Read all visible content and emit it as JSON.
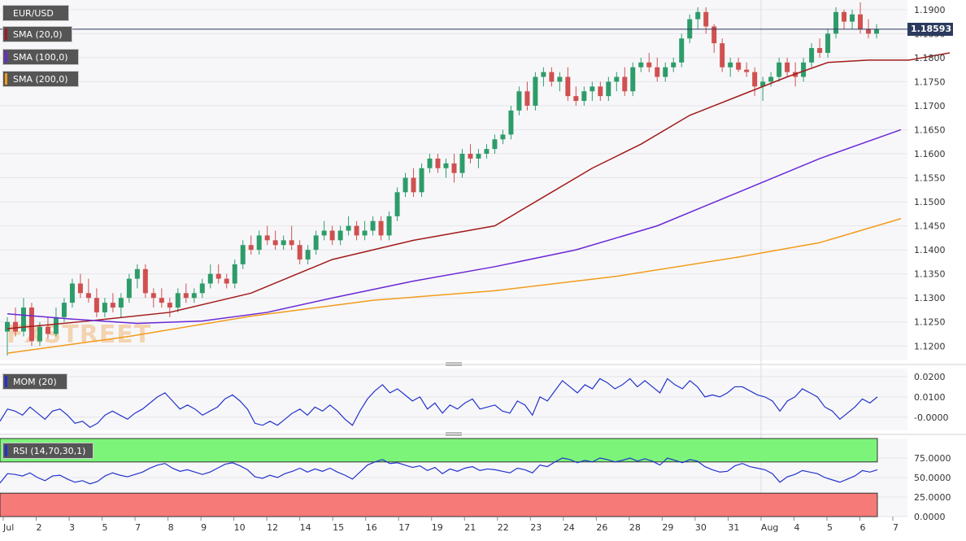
{
  "chart_data": [
    {
      "type": "candlestick",
      "symbol": "EUR/USD",
      "last_price": "1.18593",
      "ylim": [
        1.117,
        1.192
      ],
      "y_ticks": [
        "1.1900",
        "1.1850",
        "1.1800",
        "1.1750",
        "1.1700",
        "1.1650",
        "1.1600",
        "1.1550",
        "1.1500",
        "1.1450",
        "1.1400",
        "1.1350",
        "1.1300",
        "1.1250",
        "1.1200"
      ],
      "x_ticks": [
        "Jul",
        "2",
        "3",
        "5",
        "7",
        "8",
        "9",
        "10",
        "12",
        "14",
        "15",
        "16",
        "17",
        "19",
        "21",
        "22",
        "23",
        "24",
        "26",
        "28",
        "29",
        "30",
        "31",
        "Aug",
        "4",
        "5",
        "6",
        "7"
      ],
      "ohlc": [
        [
          1.123,
          1.126,
          1.118,
          1.125
        ],
        [
          1.125,
          1.128,
          1.122,
          1.123
        ],
        [
          1.123,
          1.13,
          1.122,
          1.128
        ],
        [
          1.128,
          1.129,
          1.12,
          1.121
        ],
        [
          1.121,
          1.125,
          1.12,
          1.124
        ],
        [
          1.124,
          1.126,
          1.1215,
          1.1225
        ],
        [
          1.1225,
          1.128,
          1.122,
          1.126
        ],
        [
          1.126,
          1.13,
          1.125,
          1.129
        ],
        [
          1.129,
          1.134,
          1.128,
          1.133
        ],
        [
          1.133,
          1.135,
          1.13,
          1.131
        ],
        [
          1.131,
          1.134,
          1.129,
          1.13
        ],
        [
          1.13,
          1.132,
          1.126,
          1.127
        ],
        [
          1.127,
          1.13,
          1.126,
          1.129
        ],
        [
          1.129,
          1.131,
          1.127,
          1.128
        ],
        [
          1.128,
          1.131,
          1.126,
          1.13
        ],
        [
          1.13,
          1.135,
          1.129,
          1.134
        ],
        [
          1.134,
          1.137,
          1.132,
          1.136
        ],
        [
          1.136,
          1.137,
          1.13,
          1.131
        ],
        [
          1.131,
          1.132,
          1.128,
          1.13
        ],
        [
          1.13,
          1.132,
          1.128,
          1.129
        ],
        [
          1.129,
          1.13,
          1.126,
          1.128
        ],
        [
          1.128,
          1.132,
          1.127,
          1.131
        ],
        [
          1.131,
          1.133,
          1.129,
          1.13
        ],
        [
          1.13,
          1.132,
          1.129,
          1.131
        ],
        [
          1.131,
          1.134,
          1.13,
          1.133
        ],
        [
          1.133,
          1.137,
          1.132,
          1.135
        ],
        [
          1.135,
          1.137,
          1.133,
          1.134
        ],
        [
          1.134,
          1.135,
          1.132,
          1.133
        ],
        [
          1.133,
          1.138,
          1.132,
          1.137
        ],
        [
          1.137,
          1.142,
          1.136,
          1.141
        ],
        [
          1.141,
          1.143,
          1.139,
          1.14
        ],
        [
          1.14,
          1.144,
          1.139,
          1.143
        ],
        [
          1.143,
          1.145,
          1.141,
          1.142
        ],
        [
          1.142,
          1.144,
          1.14,
          1.141
        ],
        [
          1.141,
          1.143,
          1.14,
          1.142
        ],
        [
          1.142,
          1.145,
          1.14,
          1.141
        ],
        [
          1.141,
          1.142,
          1.137,
          1.138
        ],
        [
          1.138,
          1.141,
          1.137,
          1.14
        ],
        [
          1.14,
          1.144,
          1.139,
          1.143
        ],
        [
          1.143,
          1.146,
          1.142,
          1.144
        ],
        [
          1.144,
          1.145,
          1.141,
          1.142
        ],
        [
          1.142,
          1.145,
          1.141,
          1.144
        ],
        [
          1.144,
          1.147,
          1.143,
          1.145
        ],
        [
          1.145,
          1.146,
          1.142,
          1.143
        ],
        [
          1.143,
          1.146,
          1.142,
          1.144
        ],
        [
          1.144,
          1.147,
          1.143,
          1.146
        ],
        [
          1.146,
          1.147,
          1.142,
          1.143
        ],
        [
          1.143,
          1.148,
          1.142,
          1.147
        ],
        [
          1.147,
          1.153,
          1.146,
          1.152
        ],
        [
          1.152,
          1.156,
          1.151,
          1.155
        ],
        [
          1.155,
          1.157,
          1.151,
          1.152
        ],
        [
          1.152,
          1.158,
          1.151,
          1.157
        ],
        [
          1.157,
          1.16,
          1.156,
          1.159
        ],
        [
          1.159,
          1.16,
          1.156,
          1.157
        ],
        [
          1.157,
          1.159,
          1.155,
          1.158
        ],
        [
          1.158,
          1.16,
          1.154,
          1.156
        ],
        [
          1.156,
          1.161,
          1.155,
          1.16
        ],
        [
          1.16,
          1.162,
          1.158,
          1.159
        ],
        [
          1.159,
          1.161,
          1.157,
          1.16
        ],
        [
          1.16,
          1.162,
          1.159,
          1.161
        ],
        [
          1.161,
          1.164,
          1.16,
          1.163
        ],
        [
          1.163,
          1.165,
          1.162,
          1.164
        ],
        [
          1.164,
          1.17,
          1.163,
          1.169
        ],
        [
          1.169,
          1.174,
          1.168,
          1.173
        ],
        [
          1.173,
          1.175,
          1.169,
          1.17
        ],
        [
          1.17,
          1.177,
          1.169,
          1.176
        ],
        [
          1.176,
          1.178,
          1.174,
          1.177
        ],
        [
          1.177,
          1.178,
          1.174,
          1.175
        ],
        [
          1.175,
          1.177,
          1.173,
          1.176
        ],
        [
          1.176,
          1.178,
          1.171,
          1.172
        ],
        [
          1.172,
          1.174,
          1.17,
          1.171
        ],
        [
          1.171,
          1.174,
          1.17,
          1.173
        ],
        [
          1.173,
          1.175,
          1.171,
          1.174
        ],
        [
          1.174,
          1.175,
          1.171,
          1.172
        ],
        [
          1.172,
          1.176,
          1.171,
          1.175
        ],
        [
          1.175,
          1.177,
          1.173,
          1.176
        ],
        [
          1.176,
          1.178,
          1.172,
          1.173
        ],
        [
          1.173,
          1.179,
          1.172,
          1.178
        ],
        [
          1.178,
          1.18,
          1.177,
          1.179
        ],
        [
          1.179,
          1.181,
          1.177,
          1.178
        ],
        [
          1.178,
          1.18,
          1.175,
          1.176
        ],
        [
          1.176,
          1.179,
          1.175,
          1.178
        ],
        [
          1.178,
          1.18,
          1.177,
          1.179
        ],
        [
          1.179,
          1.185,
          1.178,
          1.184
        ],
        [
          1.184,
          1.189,
          1.183,
          1.188
        ],
        [
          1.188,
          1.1905,
          1.186,
          1.1895
        ],
        [
          1.1895,
          1.1905,
          1.185,
          1.1865
        ],
        [
          1.1865,
          1.187,
          1.181,
          1.183
        ],
        [
          1.183,
          1.184,
          1.177,
          1.178
        ],
        [
          1.178,
          1.18,
          1.176,
          1.179
        ],
        [
          1.179,
          1.18,
          1.177,
          1.1775
        ],
        [
          1.1775,
          1.179,
          1.176,
          1.177
        ],
        [
          1.177,
          1.178,
          1.172,
          1.174
        ],
        [
          1.174,
          1.176,
          1.171,
          1.175
        ],
        [
          1.175,
          1.177,
          1.174,
          1.176
        ],
        [
          1.176,
          1.18,
          1.175,
          1.179
        ],
        [
          1.179,
          1.18,
          1.176,
          1.177
        ],
        [
          1.177,
          1.179,
          1.174,
          1.176
        ],
        [
          1.176,
          1.18,
          1.175,
          1.179
        ],
        [
          1.179,
          1.183,
          1.178,
          1.182
        ],
        [
          1.182,
          1.184,
          1.18,
          1.181
        ],
        [
          1.181,
          1.186,
          1.18,
          1.185
        ],
        [
          1.185,
          1.1905,
          1.184,
          1.1895
        ],
        [
          1.1895,
          1.19,
          1.186,
          1.1875
        ],
        [
          1.1875,
          1.19,
          1.186,
          1.189
        ],
        [
          1.189,
          1.1915,
          1.185,
          1.186
        ],
        [
          1.186,
          1.188,
          1.184,
          1.185
        ],
        [
          1.185,
          1.187,
          1.184,
          1.1859
        ]
      ],
      "series": [
        {
          "name": "SMA (20,0)",
          "color": "#a21b1b",
          "values": [
            [
              0,
              1.1236
            ],
            [
              10,
              1.1252
            ],
            [
              20,
              1.127
            ],
            [
              30,
              1.131
            ],
            [
              40,
              1.138
            ],
            [
              50,
              1.142
            ],
            [
              60,
              1.145
            ],
            [
              66,
              1.151
            ],
            [
              72,
              1.157
            ],
            [
              78,
              1.162
            ],
            [
              84,
              1.168
            ],
            [
              90,
              1.172
            ],
            [
              96,
              1.176
            ],
            [
              101,
              1.179
            ],
            [
              106,
              1.1795
            ],
            [
              111,
              1.1795
            ],
            [
              116,
              1.181
            ]
          ]
        },
        {
          "name": "SMA (100,0)",
          "color": "#6a28d6",
          "values": [
            [
              0,
              1.1267
            ],
            [
              8,
              1.1256
            ],
            [
              16,
              1.1247
            ],
            [
              24,
              1.1252
            ],
            [
              32,
              1.127
            ],
            [
              40,
              1.13
            ],
            [
              50,
              1.1335
            ],
            [
              60,
              1.1365
            ],
            [
              70,
              1.14
            ],
            [
              80,
              1.145
            ],
            [
              90,
              1.152
            ],
            [
              100,
              1.159
            ],
            [
              110,
              1.165
            ]
          ]
        },
        {
          "name": "SMA (200,0)",
          "color": "#f39b1a",
          "values": [
            [
              0,
              1.1185
            ],
            [
              15,
              1.122
            ],
            [
              30,
              1.1262
            ],
            [
              45,
              1.1295
            ],
            [
              60,
              1.1315
            ],
            [
              75,
              1.1345
            ],
            [
              90,
              1.1385
            ],
            [
              100,
              1.1415
            ],
            [
              110,
              1.1465
            ]
          ]
        }
      ]
    },
    {
      "type": "line",
      "title": "MOM (20)",
      "ylim": [
        -0.0065,
        0.024
      ],
      "y_ticks": [
        "0.0200",
        "0.0100",
        "-0.0000"
      ],
      "series": [
        {
          "name": "MOM (20)",
          "color": "#2233cc",
          "values": [
            -0.002,
            0.004,
            0.003,
            0.001,
            0.005,
            0.002,
            -0.001,
            0.003,
            0.004,
            0.001,
            -0.003,
            -0.002,
            -0.005,
            -0.003,
            0.001,
            0.003,
            0.001,
            -0.001,
            0.002,
            0.004,
            0.007,
            0.01,
            0.012,
            0.008,
            0.004,
            0.006,
            0.004,
            0.001,
            0.003,
            0.005,
            0.009,
            0.011,
            0.008,
            0.004,
            -0.003,
            -0.004,
            -0.002,
            -0.004,
            -0.001,
            0.002,
            0.004,
            0.001,
            0.005,
            0.003,
            0.006,
            0.003,
            -0.001,
            -0.004,
            0.003,
            0.009,
            0.013,
            0.016,
            0.012,
            0.014,
            0.011,
            0.008,
            0.01,
            0.004,
            0.007,
            0.002,
            0.006,
            0.004,
            0.007,
            0.009,
            0.004,
            0.005,
            0.006,
            0.003,
            0.002,
            0.008,
            0.006,
            0.001,
            0.01,
            0.008,
            0.013,
            0.018,
            0.015,
            0.012,
            0.016,
            0.014,
            0.019,
            0.017,
            0.014,
            0.016,
            0.019,
            0.015,
            0.018,
            0.015,
            0.012,
            0.019,
            0.016,
            0.014,
            0.018,
            0.015,
            0.01,
            0.011,
            0.01,
            0.012,
            0.015,
            0.015,
            0.013,
            0.011,
            0.01,
            0.008,
            0.003,
            0.008,
            0.01,
            0.014,
            0.012,
            0.01,
            0.005,
            0.003,
            -0.001,
            0.002,
            0.005,
            0.009,
            0.007,
            0.01
          ]
        }
      ]
    },
    {
      "type": "line",
      "title": "RSI (14,70,30,1)",
      "ylim": [
        0,
        100
      ],
      "y_ticks": [
        "75.0000",
        "50.0000",
        "25.0000",
        "0.0000"
      ],
      "overbought": 70,
      "oversold": 30,
      "series": [
        {
          "name": "RSI (14,70,30,1)",
          "color": "#2233cc",
          "values": [
            43,
            55,
            54,
            52,
            56,
            50,
            46,
            52,
            53,
            48,
            44,
            46,
            42,
            45,
            52,
            56,
            53,
            51,
            54,
            57,
            62,
            66,
            68,
            62,
            58,
            60,
            57,
            54,
            57,
            62,
            67,
            69,
            65,
            60,
            51,
            49,
            53,
            50,
            55,
            58,
            62,
            57,
            61,
            58,
            62,
            57,
            53,
            48,
            57,
            66,
            70,
            73,
            68,
            69,
            66,
            63,
            65,
            59,
            63,
            55,
            61,
            58,
            62,
            64,
            59,
            61,
            60,
            58,
            56,
            62,
            60,
            56,
            66,
            64,
            70,
            75,
            73,
            69,
            72,
            70,
            75,
            73,
            70,
            72,
            75,
            71,
            74,
            71,
            66,
            75,
            72,
            69,
            73,
            71,
            64,
            60,
            57,
            58,
            65,
            68,
            64,
            62,
            60,
            55,
            44,
            51,
            54,
            59,
            57,
            55,
            50,
            47,
            44,
            48,
            52,
            59,
            57,
            60
          ]
        }
      ]
    }
  ],
  "legend": {
    "symbol_label": "EUR/USD",
    "sma20_label": "SMA (20,0)",
    "sma100_label": "SMA (100,0)",
    "sma200_label": "SMA (200,0)",
    "mom_label": "MOM (20)",
    "rsi_label": "RSI (14,70,30,1)"
  },
  "watermark": "FXSTREET",
  "colors": {
    "bull": "#2e9c6a",
    "bear": "#d05050",
    "overbought_zone": "#7cf47a",
    "oversold_zone": "#f57a78",
    "price_line": "#2b3a5e"
  }
}
